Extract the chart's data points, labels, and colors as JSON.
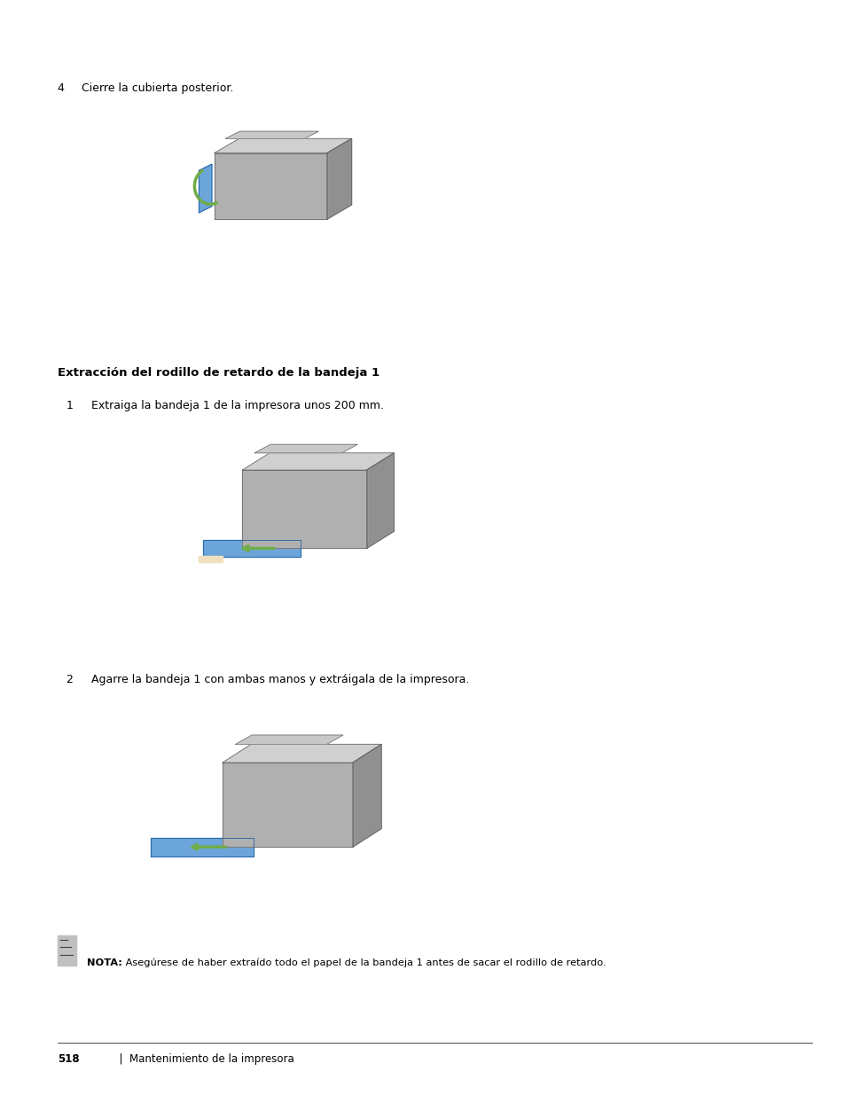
{
  "bg_color": "#ffffff",
  "page_width": 9.54,
  "page_height": 12.35,
  "dpi": 100,
  "font_family": "DejaVu Sans",
  "step4_label": "4",
  "step4_text": "Cierre la cubierta posterior.",
  "section_title": "Extracción del rodillo de retardo de la bandeja 1",
  "step1_label": "1",
  "step1_text": "Extraiga la bandeja 1 de la impresora unos 200 mm.",
  "step2_label": "2",
  "step2_text": "Agarre la bandeja 1 con ambas manos y extráigala de la impresora.",
  "note_prefix": "NOTA:",
  "note_text": " Asegúrese de haber extraído todo el papel de la bandeja 1 antes de sacar el rodillo de retardo.",
  "footer_page": "518",
  "footer_text": "Mantenimiento de la impresora",
  "color_gray": "#808080",
  "color_blue": "#4472c4",
  "color_green": "#70ad47",
  "color_dark": "#404040",
  "section_title_fontsize": 9.5,
  "body_fontsize": 9.0,
  "note_fontsize": 8.2,
  "footer_fontsize": 8.5,
  "step_number_fontsize": 9.0
}
